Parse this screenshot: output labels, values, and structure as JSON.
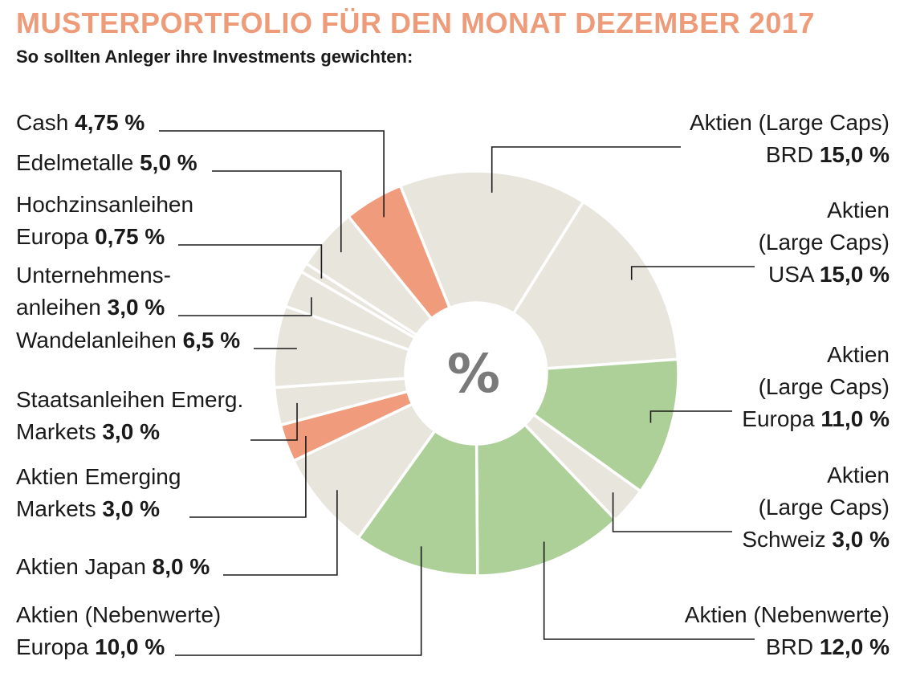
{
  "header": {
    "title": "MUSTERPORTFOLIO FÜR DEN MONAT DEZEMBER 2017",
    "subtitle": "So sollten Anleger ihre Investments gewichten:"
  },
  "center_symbol": "%",
  "colors": {
    "title": "#ee9b7a",
    "neutral": "#e8e5dd",
    "orange": "#ef9b7c",
    "green": "#acd098",
    "leader": "#1a1a1a"
  },
  "chart_data": {
    "type": "pie",
    "variant": "donut",
    "unit": "%",
    "slices": [
      {
        "name": "Aktien (Large Caps) BRD",
        "value": 15.0,
        "color": "neutral",
        "label_lines": [
          "Aktien (Large Caps)",
          "BRD"
        ],
        "value_label": "15,0 %",
        "side": "right"
      },
      {
        "name": "Aktien (Large Caps) USA",
        "value": 15.0,
        "color": "neutral",
        "label_lines": [
          "Aktien",
          "(Large Caps)",
          "USA"
        ],
        "value_label": "15,0 %",
        "side": "right"
      },
      {
        "name": "Aktien (Large Caps) Europa",
        "value": 11.0,
        "color": "green",
        "label_lines": [
          "Aktien",
          "(Large Caps)",
          "Europa"
        ],
        "value_label": "11,0 %",
        "side": "right"
      },
      {
        "name": "Aktien (Large Caps) Schweiz",
        "value": 3.0,
        "color": "neutral",
        "label_lines": [
          "Aktien",
          "(Large Caps)",
          "Schweiz"
        ],
        "value_label": "3,0 %",
        "side": "right"
      },
      {
        "name": "Aktien (Nebenwerte) BRD",
        "value": 12.0,
        "color": "green",
        "label_lines": [
          "Aktien (Nebenwerte)",
          "BRD"
        ],
        "value_label": "12,0 %",
        "side": "right"
      },
      {
        "name": "Aktien (Nebenwerte) Europa",
        "value": 10.0,
        "color": "green",
        "label_lines": [
          "Aktien (Nebenwerte)",
          "Europa"
        ],
        "value_label": "10,0 %",
        "side": "left"
      },
      {
        "name": "Aktien Japan",
        "value": 8.0,
        "color": "neutral",
        "label_lines": [
          "Aktien Japan"
        ],
        "value_label": "8,0 %",
        "side": "left"
      },
      {
        "name": "Aktien Emerging Markets",
        "value": 3.0,
        "color": "orange",
        "label_lines": [
          "Aktien Emerging",
          "Markets"
        ],
        "value_label": "3,0 %",
        "side": "left"
      },
      {
        "name": "Staatsanleihen Emerg. Markets",
        "value": 3.0,
        "color": "neutral",
        "label_lines": [
          "Staatsanleihen Emerg.",
          "Markets"
        ],
        "value_label": "3,0 %",
        "side": "left"
      },
      {
        "name": "Wandelanleihen",
        "value": 6.5,
        "color": "neutral",
        "label_lines": [
          "Wandelanleihen"
        ],
        "value_label": "6,5 %",
        "side": "left"
      },
      {
        "name": "Unternehmensanleihen",
        "value": 3.0,
        "color": "neutral",
        "label_lines": [
          "Unternehmens-",
          "anleihen"
        ],
        "value_label": "3,0 %",
        "side": "left"
      },
      {
        "name": "Hochzinsanleihen Europa",
        "value": 0.75,
        "color": "neutral",
        "label_lines": [
          "Hochzinsanleihen",
          "Europa"
        ],
        "value_label": "0,75 %",
        "side": "left"
      },
      {
        "name": "Edelmetalle",
        "value": 5.0,
        "color": "neutral",
        "label_lines": [
          "Edelmetalle"
        ],
        "value_label": "5,0 %",
        "side": "left"
      },
      {
        "name": "Cash",
        "value": 4.75,
        "color": "orange",
        "label_lines": [
          "Cash"
        ],
        "value_label": "4,75 %",
        "side": "left"
      }
    ]
  }
}
